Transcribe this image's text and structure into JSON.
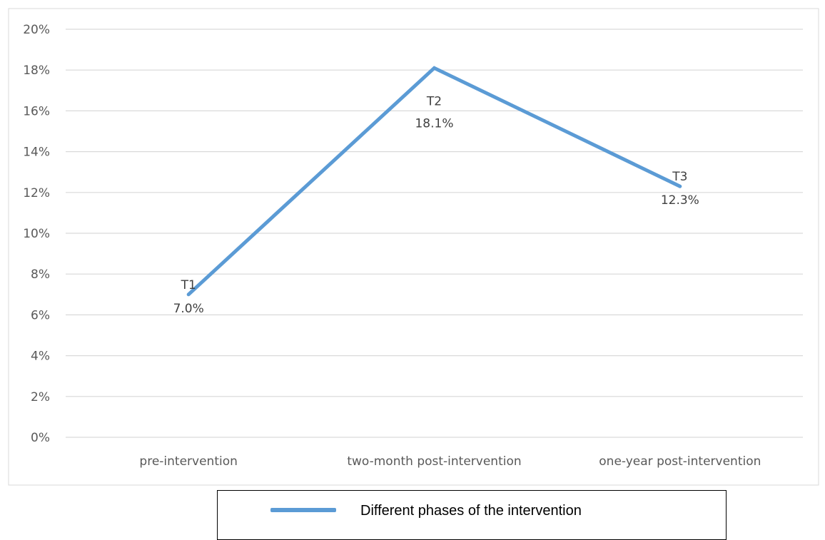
{
  "chart_data": {
    "type": "line",
    "categories": [
      "pre-intervention",
      "two-month post-intervention",
      "one-year post-intervention"
    ],
    "series": [
      {
        "name": "Different phases of the intervention",
        "values": [
          7.0,
          18.1,
          12.3
        ],
        "color": "#5b9bd5"
      }
    ],
    "point_labels": [
      "T1",
      "T2",
      "T3"
    ],
    "value_labels": [
      "7.0%",
      "18.1%",
      "12.3%"
    ],
    "y_ticks": [
      "0%",
      "2%",
      "4%",
      "6%",
      "8%",
      "10%",
      "12%",
      "14%",
      "16%",
      "18%",
      "20%"
    ],
    "ylim": [
      0,
      20
    ],
    "grid": true,
    "legend_position": "bottom",
    "title": "",
    "xlabel": "",
    "ylabel": ""
  },
  "colors": {
    "line": "#5b9bd5",
    "gridline": "#d9d9d9",
    "frame": "#d9d9d9",
    "tick_text": "#595959"
  },
  "legend": {
    "label": "Different phases of the intervention"
  }
}
